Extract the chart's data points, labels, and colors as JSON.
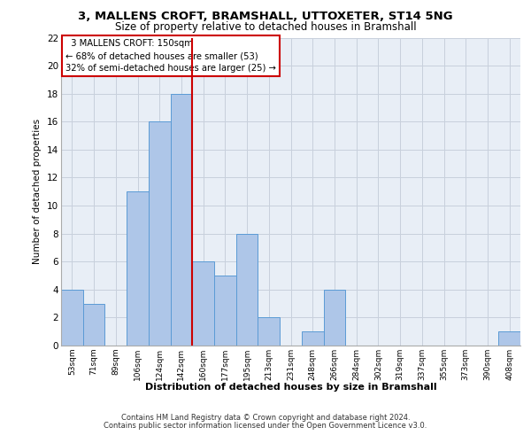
{
  "title": "3, MALLENS CROFT, BRAMSHALL, UTTOXETER, ST14 5NG",
  "subtitle": "Size of property relative to detached houses in Bramshall",
  "xlabel": "Distribution of detached houses by size in Bramshall",
  "ylabel": "Number of detached properties",
  "categories": [
    "53sqm",
    "71sqm",
    "89sqm",
    "106sqm",
    "124sqm",
    "142sqm",
    "160sqm",
    "177sqm",
    "195sqm",
    "213sqm",
    "231sqm",
    "248sqm",
    "266sqm",
    "284sqm",
    "302sqm",
    "319sqm",
    "337sqm",
    "355sqm",
    "373sqm",
    "390sqm",
    "408sqm"
  ],
  "values": [
    4,
    3,
    0,
    11,
    16,
    18,
    6,
    5,
    8,
    2,
    0,
    1,
    4,
    0,
    0,
    0,
    0,
    0,
    0,
    0,
    1
  ],
  "bar_color": "#aec6e8",
  "bar_edge_color": "#5b9bd5",
  "property_line_label": "3 MALLENS CROFT: 150sqm",
  "annotation_line1": "← 68% of detached houses are smaller (53)",
  "annotation_line2": "32% of semi-detached houses are larger (25) →",
  "annotation_box_color": "#ffffff",
  "annotation_box_edge": "#cc0000",
  "line_color": "#cc0000",
  "ylim": [
    0,
    22
  ],
  "yticks": [
    0,
    2,
    4,
    6,
    8,
    10,
    12,
    14,
    16,
    18,
    20,
    22
  ],
  "grid_color": "#c8d0dc",
  "bg_color": "#e8eef6",
  "footer1": "Contains HM Land Registry data © Crown copyright and database right 2024.",
  "footer2": "Contains public sector information licensed under the Open Government Licence v3.0."
}
